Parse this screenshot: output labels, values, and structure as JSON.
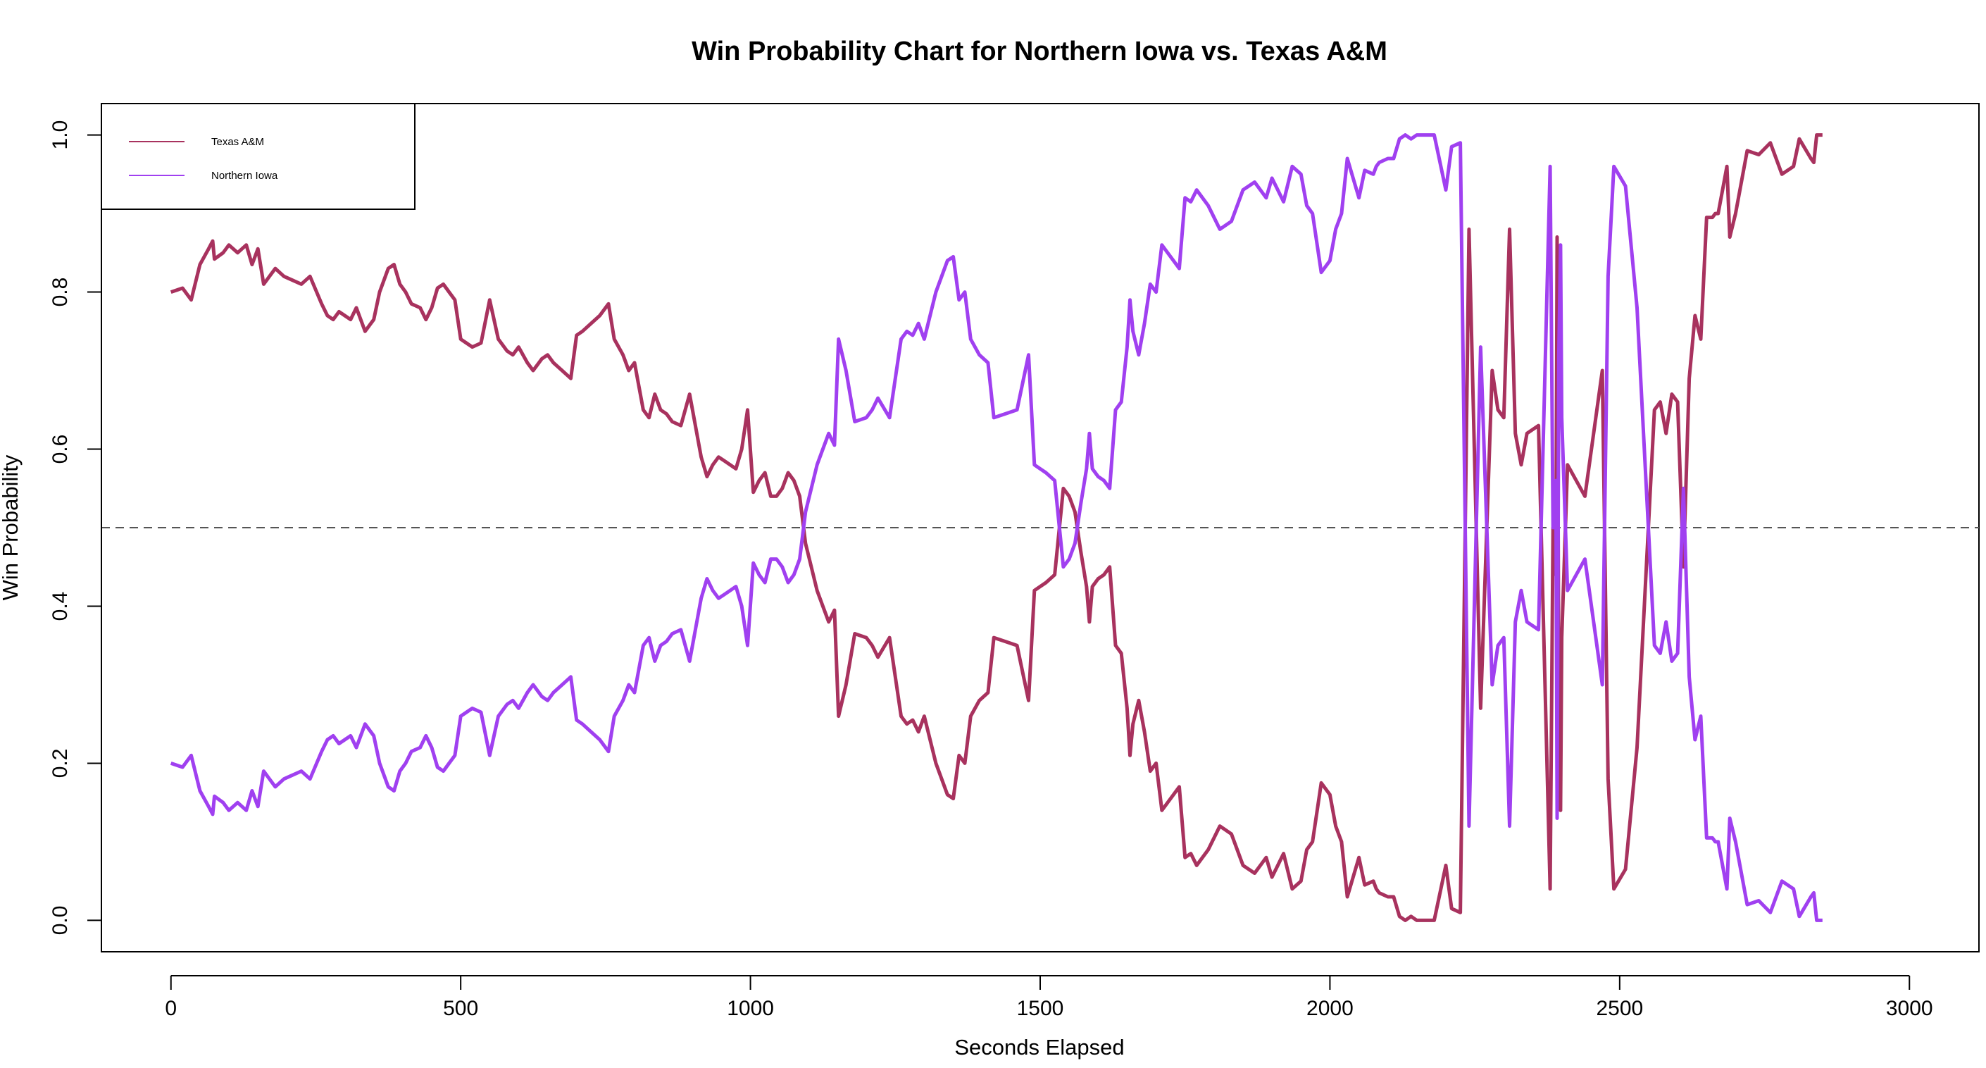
{
  "chart_data": {
    "type": "line",
    "title": "Win Probability Chart for Northern Iowa vs. Texas A&M",
    "xlabel": "Seconds Elapsed",
    "ylabel": "Win Probability",
    "xlim": [
      -120,
      3120
    ],
    "ylim": [
      -0.04,
      1.04
    ],
    "x_ticks": [
      0,
      500,
      1000,
      1500,
      2000,
      2500,
      3000
    ],
    "x_tick_labels": [
      "0",
      "500",
      "1000",
      "1500",
      "2000",
      "2500",
      "3000"
    ],
    "y_ticks": [
      0,
      0.2,
      0.4,
      0.6,
      0.8,
      1
    ],
    "y_tick_labels": [
      "0.0",
      "0.2",
      "0.4",
      "0.6",
      "0.8",
      "1.0"
    ],
    "reference_line": {
      "y": 0.5,
      "style": "dashed"
    },
    "legend": {
      "position": "top-left"
    },
    "series": [
      {
        "name": "Texas A&M",
        "color": "#a8325e"
      },
      {
        "name": "Northern Iowa",
        "color": "#a040f0"
      }
    ],
    "x": [
      0,
      20,
      35,
      50,
      65,
      72,
      75,
      90,
      100,
      115,
      130,
      140,
      150,
      160,
      170,
      180,
      195,
      210,
      225,
      240,
      260,
      270,
      280,
      290,
      300,
      310,
      320,
      335,
      345,
      350,
      360,
      375,
      385,
      395,
      405,
      415,
      430,
      440,
      450,
      460,
      470,
      480,
      490,
      500,
      510,
      520,
      535,
      550,
      565,
      580,
      590,
      600,
      615,
      625,
      640,
      650,
      660,
      675,
      690,
      700,
      710,
      725,
      740,
      755,
      765,
      780,
      790,
      800,
      815,
      825,
      835,
      845,
      855,
      865,
      880,
      895,
      905,
      915,
      925,
      935,
      945,
      955,
      965,
      975,
      985,
      995,
      1005,
      1015,
      1025,
      1035,
      1045,
      1055,
      1065,
      1075,
      1085,
      1095,
      1105,
      1115,
      1125,
      1135,
      1145,
      1152,
      1165,
      1180,
      1200,
      1210,
      1220,
      1240,
      1260,
      1270,
      1280,
      1290,
      1300,
      1320,
      1340,
      1350,
      1360,
      1370,
      1380,
      1395,
      1410,
      1420,
      1440,
      1460,
      1480,
      1490,
      1500,
      1510,
      1525,
      1540,
      1550,
      1560,
      1570,
      1580,
      1585,
      1590,
      1600,
      1610,
      1620,
      1630,
      1640,
      1650,
      1655,
      1660,
      1670,
      1680,
      1690,
      1700,
      1710,
      1720,
      1740,
      1750,
      1760,
      1770,
      1790,
      1810,
      1830,
      1850,
      1870,
      1890,
      1900,
      1910,
      1920,
      1935,
      1950,
      1960,
      1970,
      1985,
      2000,
      2010,
      2020,
      2030,
      2050,
      2060,
      2075,
      2080,
      2085,
      2100,
      2110,
      2120,
      2130,
      2140,
      2150,
      2160,
      2180,
      2200,
      2210,
      2225,
      2240,
      2260,
      2280,
      2290,
      2300,
      2310,
      2320,
      2330,
      2340,
      2360,
      2380,
      2385,
      2390,
      2392,
      2395,
      2398,
      2400,
      2410,
      2440,
      2470,
      2480,
      2490,
      2510,
      2530,
      2560,
      2570,
      2580,
      2590,
      2600,
      2610,
      2620,
      2630,
      2640,
      2650,
      2660,
      2665,
      2670,
      2680,
      2685,
      2690,
      2700,
      2720,
      2740,
      2760,
      2780,
      2800,
      2810,
      2830,
      2835,
      2840,
      2850,
      2860,
      2880,
      2890,
      2900,
      2910,
      2920,
      2940,
      2950,
      2960,
      2965,
      2970,
      2975,
      2980,
      2985,
      2990,
      3000
    ],
    "northern_iowa": [
      0.2,
      0.195,
      0.21,
      0.165,
      0.145,
      0.135,
      0.158,
      0.15,
      0.14,
      0.15,
      0.14,
      0.165,
      0.145,
      0.19,
      0.18,
      0.17,
      0.18,
      0.185,
      0.19,
      0.18,
      0.215,
      0.23,
      0.235,
      0.225,
      0.23,
      0.235,
      0.22,
      0.25,
      0.24,
      0.235,
      0.2,
      0.17,
      0.165,
      0.19,
      0.2,
      0.215,
      0.22,
      0.235,
      0.22,
      0.195,
      0.19,
      0.2,
      0.21,
      0.26,
      0.265,
      0.27,
      0.265,
      0.21,
      0.26,
      0.275,
      0.28,
      0.27,
      0.29,
      0.3,
      0.285,
      0.28,
      0.29,
      0.3,
      0.31,
      0.255,
      0.25,
      0.24,
      0.23,
      0.215,
      0.26,
      0.28,
      0.3,
      0.29,
      0.35,
      0.36,
      0.33,
      0.35,
      0.355,
      0.365,
      0.37,
      0.33,
      0.37,
      0.41,
      0.435,
      0.42,
      0.41,
      0.415,
      0.42,
      0.425,
      0.4,
      0.35,
      0.455,
      0.44,
      0.43,
      0.46,
      0.46,
      0.45,
      0.43,
      0.44,
      0.46,
      0.52,
      0.55,
      0.58,
      0.6,
      0.62,
      0.605,
      0.74,
      0.7,
      0.635,
      0.64,
      0.65,
      0.665,
      0.64,
      0.74,
      0.75,
      0.745,
      0.76,
      0.74,
      0.8,
      0.84,
      0.845,
      0.79,
      0.8,
      0.74,
      0.72,
      0.71,
      0.64,
      0.645,
      0.65,
      0.72,
      0.58,
      0.575,
      0.57,
      0.56,
      0.45,
      0.46,
      0.48,
      0.53,
      0.575,
      0.62,
      0.575,
      0.565,
      0.56,
      0.55,
      0.65,
      0.66,
      0.73,
      0.79,
      0.75,
      0.72,
      0.76,
      0.81,
      0.8,
      0.86,
      0.85,
      0.83,
      0.92,
      0.915,
      0.93,
      0.91,
      0.88,
      0.89,
      0.93,
      0.94,
      0.92,
      0.945,
      0.93,
      0.915,
      0.96,
      0.95,
      0.91,
      0.9,
      0.825,
      0.84,
      0.88,
      0.9,
      0.97,
      0.92,
      0.955,
      0.95,
      0.96,
      0.965,
      0.97,
      0.97,
      0.995,
      1,
      0.995,
      1,
      1,
      1,
      0.93,
      0.985,
      0.99,
      0.12,
      0.73,
      0.3,
      0.35,
      0.36,
      0.12,
      0.38,
      0.42,
      0.38,
      0.37,
      0.96,
      0.5,
      0.56,
      0.13,
      0.72,
      0.86,
      0.64,
      0.42,
      0.46,
      0.3,
      0.82,
      0.96,
      0.935,
      0.78,
      0.35,
      0.34,
      0.38,
      0.33,
      0.34,
      0.55,
      0.31,
      0.23,
      0.26,
      0.105,
      0.105,
      0.1,
      0.1,
      0.06,
      0.04,
      0.13,
      0.1,
      0.02,
      0.025,
      0.01,
      0.05,
      0.04,
      0.005,
      0.03,
      0.035,
      0.0,
      0.0
    ],
    "texas_am": [
      0.8,
      0.805,
      0.79,
      0.835,
      0.855,
      0.865,
      0.842,
      0.85,
      0.86,
      0.85,
      0.86,
      0.835,
      0.855,
      0.81,
      0.82,
      0.83,
      0.82,
      0.815,
      0.81,
      0.82,
      0.785,
      0.77,
      0.765,
      0.775,
      0.77,
      0.765,
      0.78,
      0.75,
      0.76,
      0.765,
      0.8,
      0.83,
      0.835,
      0.81,
      0.8,
      0.785,
      0.78,
      0.765,
      0.78,
      0.805,
      0.81,
      0.8,
      0.79,
      0.74,
      0.735,
      0.73,
      0.735,
      0.79,
      0.74,
      0.725,
      0.72,
      0.73,
      0.71,
      0.7,
      0.715,
      0.72,
      0.71,
      0.7,
      0.69,
      0.745,
      0.75,
      0.76,
      0.77,
      0.785,
      0.74,
      0.72,
      0.7,
      0.71,
      0.65,
      0.64,
      0.67,
      0.65,
      0.645,
      0.635,
      0.63,
      0.67,
      0.63,
      0.59,
      0.565,
      0.58,
      0.59,
      0.585,
      0.58,
      0.575,
      0.6,
      0.65,
      0.545,
      0.56,
      0.57,
      0.54,
      0.54,
      0.55,
      0.57,
      0.56,
      0.54,
      0.48,
      0.45,
      0.42,
      0.4,
      0.38,
      0.395,
      0.26,
      0.3,
      0.365,
      0.36,
      0.35,
      0.335,
      0.36,
      0.26,
      0.25,
      0.255,
      0.24,
      0.26,
      0.2,
      0.16,
      0.155,
      0.21,
      0.2,
      0.26,
      0.28,
      0.29,
      0.36,
      0.355,
      0.35,
      0.28,
      0.42,
      0.425,
      0.43,
      0.44,
      0.55,
      0.54,
      0.52,
      0.47,
      0.425,
      0.38,
      0.425,
      0.435,
      0.44,
      0.45,
      0.35,
      0.34,
      0.27,
      0.21,
      0.25,
      0.28,
      0.24,
      0.19,
      0.2,
      0.14,
      0.15,
      0.17,
      0.08,
      0.085,
      0.07,
      0.09,
      0.12,
      0.11,
      0.07,
      0.06,
      0.08,
      0.055,
      0.07,
      0.085,
      0.04,
      0.05,
      0.09,
      0.1,
      0.175,
      0.16,
      0.12,
      0.1,
      0.03,
      0.08,
      0.045,
      0.05,
      0.04,
      0.035,
      0.03,
      0.03,
      0.005,
      0.0,
      0.005,
      0.0,
      0.0,
      0.0,
      0.07,
      0.015,
      0.01,
      0.88,
      0.27,
      0.7,
      0.65,
      0.64,
      0.88,
      0.62,
      0.58,
      0.62,
      0.63,
      0.04,
      0.5,
      0.44,
      0.87,
      0.28,
      0.14,
      0.36,
      0.58,
      0.54,
      0.7,
      0.18,
      0.04,
      0.065,
      0.22,
      0.65,
      0.66,
      0.62,
      0.67,
      0.66,
      0.45,
      0.69,
      0.77,
      0.74,
      0.895,
      0.895,
      0.9,
      0.9,
      0.94,
      0.96,
      0.87,
      0.9,
      0.98,
      0.975,
      0.99,
      0.95,
      0.96,
      0.995,
      0.97,
      0.965,
      1.0,
      1.0
    ]
  }
}
